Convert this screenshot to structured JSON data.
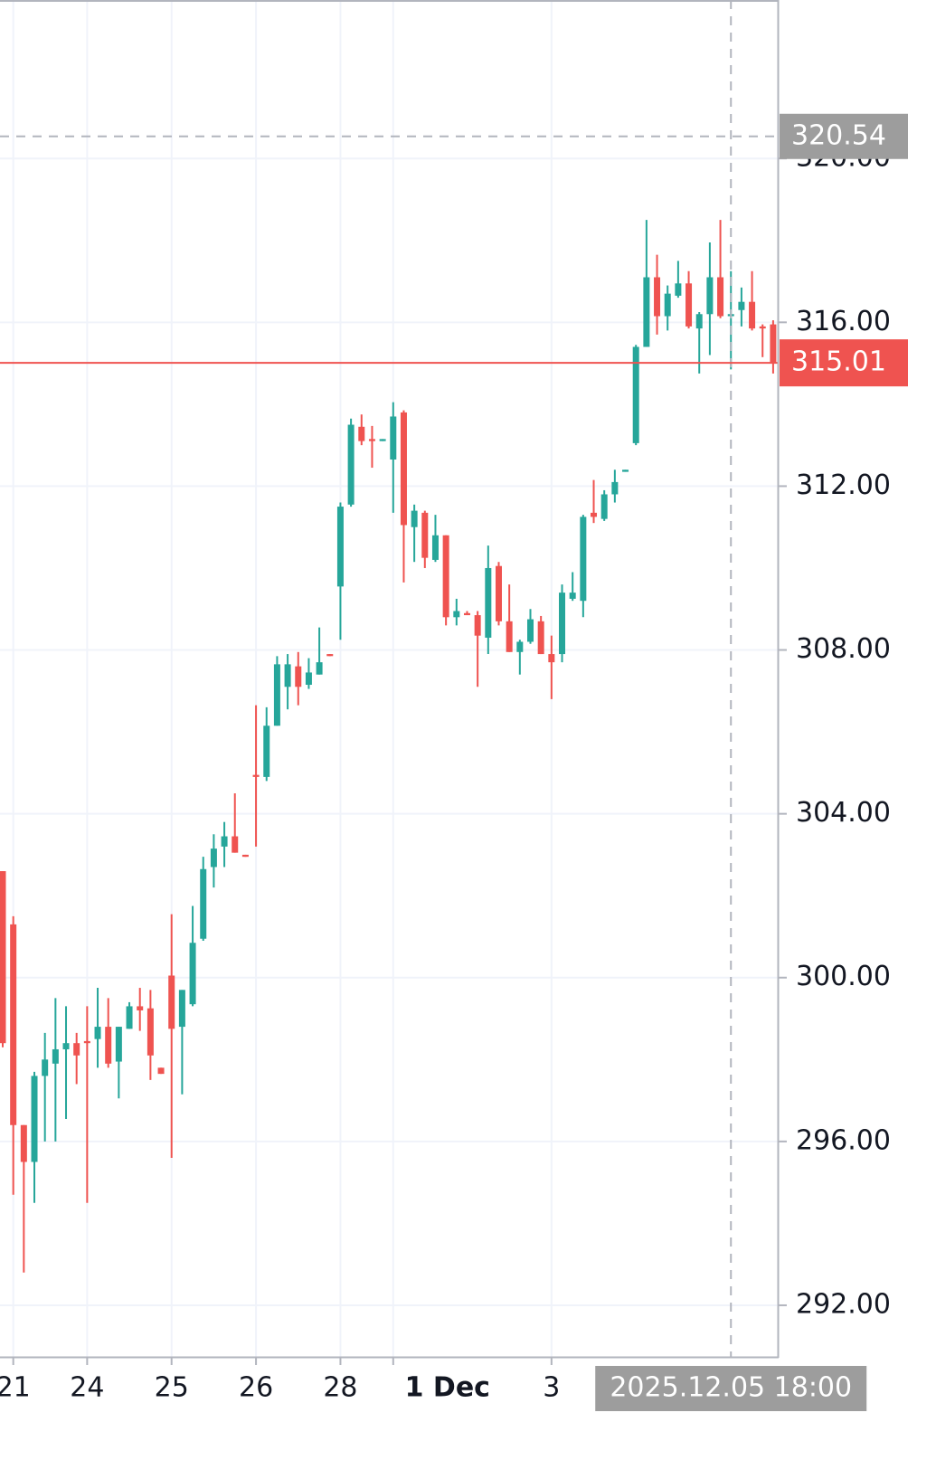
{
  "chart_data": {
    "type": "candlestick",
    "categories": [
      null,
      "21",
      null,
      null,
      null,
      null,
      null,
      null,
      "24",
      null,
      null,
      null,
      null,
      null,
      null,
      null,
      "25",
      null,
      null,
      null,
      null,
      null,
      null,
      null,
      "26",
      null,
      null,
      null,
      null,
      null,
      null,
      null,
      "28",
      null,
      null,
      null,
      null,
      "1 Dec",
      null,
      null,
      null,
      null,
      null,
      null,
      null,
      null,
      null,
      null,
      null,
      null,
      null,
      null,
      "3",
      null,
      null,
      null,
      null,
      null,
      null,
      null,
      null,
      null,
      null,
      null,
      null,
      null,
      null,
      null,
      null,
      "2025.12.05 18:00",
      null,
      null,
      null,
      null
    ],
    "open": [
      302.6,
      301.3,
      296.4,
      295.5,
      297.6,
      297.9,
      298.25,
      298.4,
      298.45,
      298.5,
      298.8,
      297.95,
      298.75,
      299.3,
      299.25,
      297.8,
      300.05,
      298.8,
      299.35,
      300.95,
      302.7,
      303.2,
      303.45,
      303.0,
      304.95,
      304.9,
      306.15,
      307.1,
      307.6,
      307.15,
      307.4,
      307.9,
      309.55,
      311.55,
      313.45,
      313.15,
      313.1,
      312.65,
      313.8,
      311.0,
      311.35,
      310.2,
      310.8,
      308.8,
      308.9,
      308.85,
      308.3,
      310.05,
      308.7,
      307.95,
      308.2,
      308.7,
      307.9,
      307.9,
      309.25,
      309.2,
      311.35,
      311.2,
      311.8,
      312.35,
      313.05,
      315.4,
      317.1,
      316.15,
      316.65,
      316.95,
      315.85,
      316.2,
      317.1,
      316.15,
      316.3,
      316.5,
      315.9,
      315.95
    ],
    "high": [
      302.6,
      301.5,
      296.4,
      297.7,
      298.65,
      299.5,
      299.3,
      298.65,
      299.3,
      299.75,
      299.5,
      298.8,
      299.4,
      299.75,
      299.7,
      297.8,
      301.55,
      299.7,
      301.75,
      302.95,
      303.5,
      303.8,
      304.5,
      303.0,
      306.65,
      306.6,
      307.85,
      307.9,
      307.95,
      307.8,
      308.55,
      307.9,
      311.6,
      313.65,
      313.75,
      313.47,
      313.15,
      314.05,
      313.85,
      311.55,
      311.4,
      311.3,
      310.8,
      309.25,
      308.95,
      308.95,
      310.55,
      310.15,
      309.6,
      308.25,
      309.0,
      308.83,
      308.35,
      309.6,
      309.9,
      311.3,
      312.15,
      311.9,
      312.4,
      312.4,
      315.45,
      318.5,
      317.65,
      316.9,
      317.5,
      317.25,
      316.25,
      317.95,
      318.5,
      317.25,
      316.85,
      317.25,
      315.95,
      316.05
    ],
    "low": [
      298.3,
      294.7,
      292.8,
      294.5,
      296.0,
      296.0,
      296.55,
      297.4,
      294.5,
      297.8,
      297.8,
      297.05,
      298.75,
      298.7,
      297.5,
      297.65,
      295.6,
      297.15,
      299.3,
      300.9,
      302.2,
      302.7,
      303.05,
      302.95,
      303.2,
      304.8,
      306.15,
      306.55,
      306.65,
      307.05,
      307.4,
      307.85,
      308.25,
      311.5,
      313.0,
      312.45,
      313.1,
      311.35,
      309.65,
      310.15,
      310.0,
      310.15,
      308.6,
      308.6,
      308.85,
      307.1,
      307.9,
      308.6,
      307.95,
      307.4,
      308.15,
      307.9,
      306.8,
      307.7,
      309.2,
      308.8,
      311.1,
      311.15,
      311.6,
      312.35,
      313.0,
      315.4,
      315.7,
      315.8,
      316.6,
      315.85,
      314.75,
      315.2,
      316.1,
      314.85,
      315.9,
      315.8,
      315.15,
      314.75
    ],
    "close": [
      298.4,
      296.4,
      295.5,
      297.6,
      298.0,
      298.25,
      298.4,
      298.1,
      298.4,
      298.8,
      297.9,
      298.8,
      299.3,
      299.2,
      298.1,
      297.65,
      298.75,
      299.7,
      300.85,
      302.65,
      303.15,
      303.45,
      303.05,
      302.95,
      304.9,
      306.15,
      307.65,
      307.65,
      307.1,
      307.45,
      307.7,
      307.85,
      311.5,
      313.5,
      313.1,
      313.1,
      313.15,
      313.7,
      311.05,
      311.4,
      310.25,
      310.8,
      308.8,
      308.95,
      308.85,
      308.35,
      310.0,
      308.7,
      307.95,
      308.2,
      308.75,
      307.9,
      307.7,
      309.4,
      309.4,
      311.25,
      311.25,
      311.8,
      312.1,
      312.4,
      315.4,
      317.1,
      316.15,
      316.7,
      316.95,
      315.9,
      316.2,
      317.1,
      316.15,
      316.2,
      316.5,
      315.85,
      315.85,
      315.01
    ],
    "up_color": "#26a69a",
    "down_color": "#ef5350",
    "ylim": [
      290.74,
      323.87
    ],
    "yticks": [
      {
        "value": 292,
        "label": "292.00"
      },
      {
        "value": 296,
        "label": "296.00"
      },
      {
        "value": 300,
        "label": "300.00"
      },
      {
        "value": 304,
        "label": "304.00"
      },
      {
        "value": 308,
        "label": "308.00"
      },
      {
        "value": 312,
        "label": "312.00"
      },
      {
        "value": 316,
        "label": "316.00"
      },
      {
        "value": 320,
        "label": "320.00"
      }
    ],
    "grid": true,
    "last_price": 315.01,
    "crosshair": {
      "price": 320.54,
      "category": "2025.12.05 18:00"
    }
  }
}
